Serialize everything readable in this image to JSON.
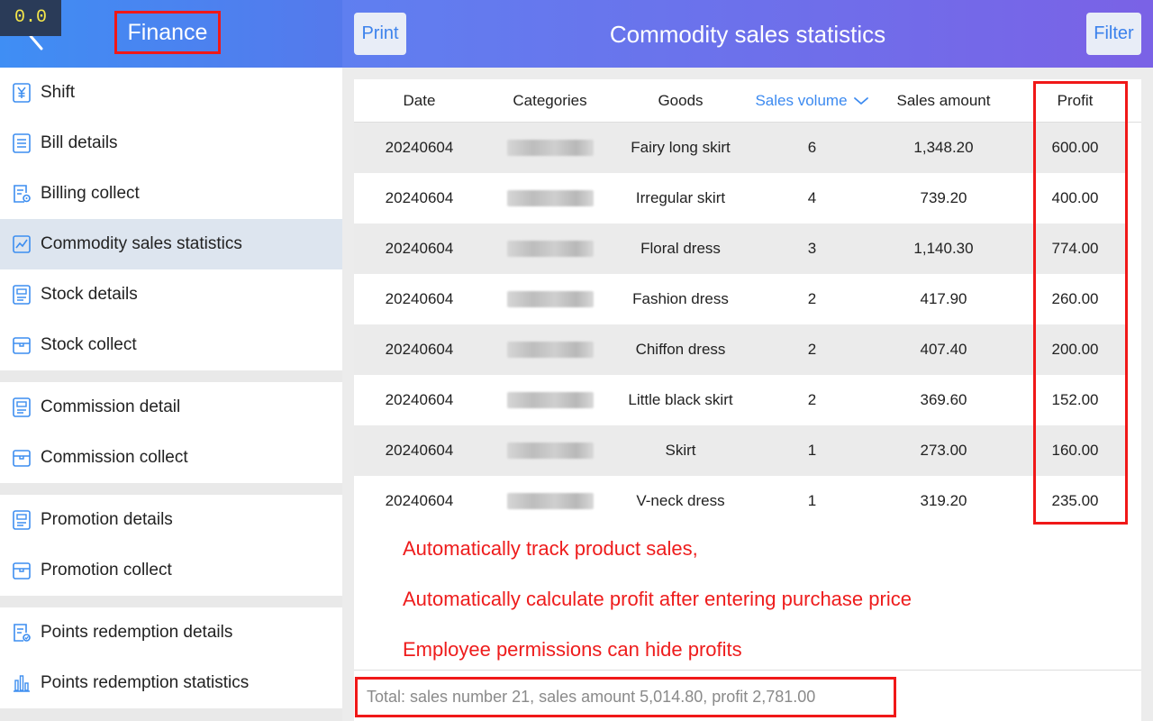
{
  "overlay": {
    "fps": "0.0"
  },
  "sidebar": {
    "title": "Finance",
    "groups": [
      {
        "items": [
          {
            "label": "Shift",
            "icon": "yen-receipt-icon"
          },
          {
            "label": "Bill details",
            "icon": "list-document-icon"
          },
          {
            "label": "Billing collect",
            "icon": "document-gear-icon"
          },
          {
            "label": "Commodity sales statistics",
            "icon": "line-chart-icon",
            "active": true
          },
          {
            "label": "Stock details",
            "icon": "stock-document-icon"
          },
          {
            "label": "Stock collect",
            "icon": "box-icon"
          }
        ]
      },
      {
        "items": [
          {
            "label": "Commission detail",
            "icon": "commission-document-icon"
          },
          {
            "label": "Commission collect",
            "icon": "box-icon"
          }
        ]
      },
      {
        "items": [
          {
            "label": "Promotion details",
            "icon": "promotion-document-icon"
          },
          {
            "label": "Promotion collect",
            "icon": "box-icon"
          }
        ]
      },
      {
        "items": [
          {
            "label": "Points redemption details",
            "icon": "points-document-icon"
          },
          {
            "label": "Points redemption statistics",
            "icon": "bar-chart-icon"
          }
        ]
      }
    ]
  },
  "header": {
    "print_label": "Print",
    "title": "Commodity sales statistics",
    "filter_label": "Filter"
  },
  "table": {
    "columns": [
      "Date",
      "Categories",
      "Goods",
      "Sales volume",
      "Sales amount",
      "Profit"
    ],
    "sorted_column": "Sales volume",
    "rows": [
      {
        "date": "20240604",
        "goods": "Fairy long skirt",
        "volume": "6",
        "amount": "1,348.20",
        "profit": "600.00"
      },
      {
        "date": "20240604",
        "goods": "Irregular skirt",
        "volume": "4",
        "amount": "739.20",
        "profit": "400.00"
      },
      {
        "date": "20240604",
        "goods": "Floral dress",
        "volume": "3",
        "amount": "1,140.30",
        "profit": "774.00"
      },
      {
        "date": "20240604",
        "goods": "Fashion dress",
        "volume": "2",
        "amount": "417.90",
        "profit": "260.00"
      },
      {
        "date": "20240604",
        "goods": "Chiffon dress",
        "volume": "2",
        "amount": "407.40",
        "profit": "200.00"
      },
      {
        "date": "20240604",
        "goods": "Little black skirt",
        "volume": "2",
        "amount": "369.60",
        "profit": "152.00"
      },
      {
        "date": "20240604",
        "goods": "Skirt",
        "volume": "1",
        "amount": "273.00",
        "profit": "160.00"
      },
      {
        "date": "20240604",
        "goods": "V-neck dress",
        "volume": "1",
        "amount": "319.20",
        "profit": "235.00"
      }
    ]
  },
  "notes": [
    "Automatically track product sales,",
    "Automatically calculate profit after entering purchase price",
    "Employee permissions can hide profits"
  ],
  "footer": {
    "total": "Total: sales number 21, sales amount 5,014.80, profit 2,781.00"
  },
  "colors": {
    "accent": "#3c8af0",
    "highlight": "#f01818",
    "note_text": "#ee1c1c"
  }
}
